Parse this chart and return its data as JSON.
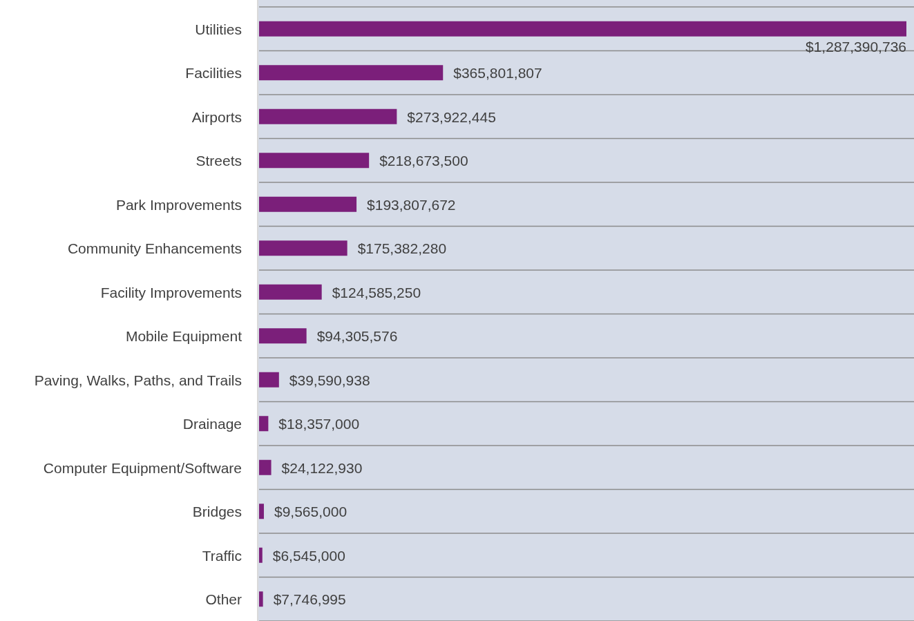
{
  "chart_data": {
    "type": "bar",
    "orientation": "horizontal",
    "categories": [
      "Utilities",
      "Facilities",
      "Airports",
      "Streets",
      "Park Improvements",
      "Community Enhancements",
      "Facility Improvements",
      "Mobile Equipment",
      "Paving, Walks, Paths, and Trails",
      "Drainage",
      "Computer Equipment/Software",
      "Bridges",
      "Traffic",
      "Other"
    ],
    "values": [
      1287390736,
      365801807,
      273922445,
      218673500,
      193807672,
      175382280,
      124585250,
      94305576,
      39590938,
      18357000,
      24122930,
      9565000,
      6545000,
      7746995
    ],
    "color": "#7b1f7a",
    "value_labels": [
      "$1,287,390,736",
      "$365,801,807",
      "$273,922,445",
      "$218,673,500",
      "$193,807,672",
      "$175,382,280",
      "$124,585,250",
      "$94,305,576",
      "$39,590,938",
      "$18,357,000",
      "$24,122,930",
      "$9,565,000",
      "$6,545,000",
      "$7,746,995"
    ],
    "grid": "y"
  }
}
